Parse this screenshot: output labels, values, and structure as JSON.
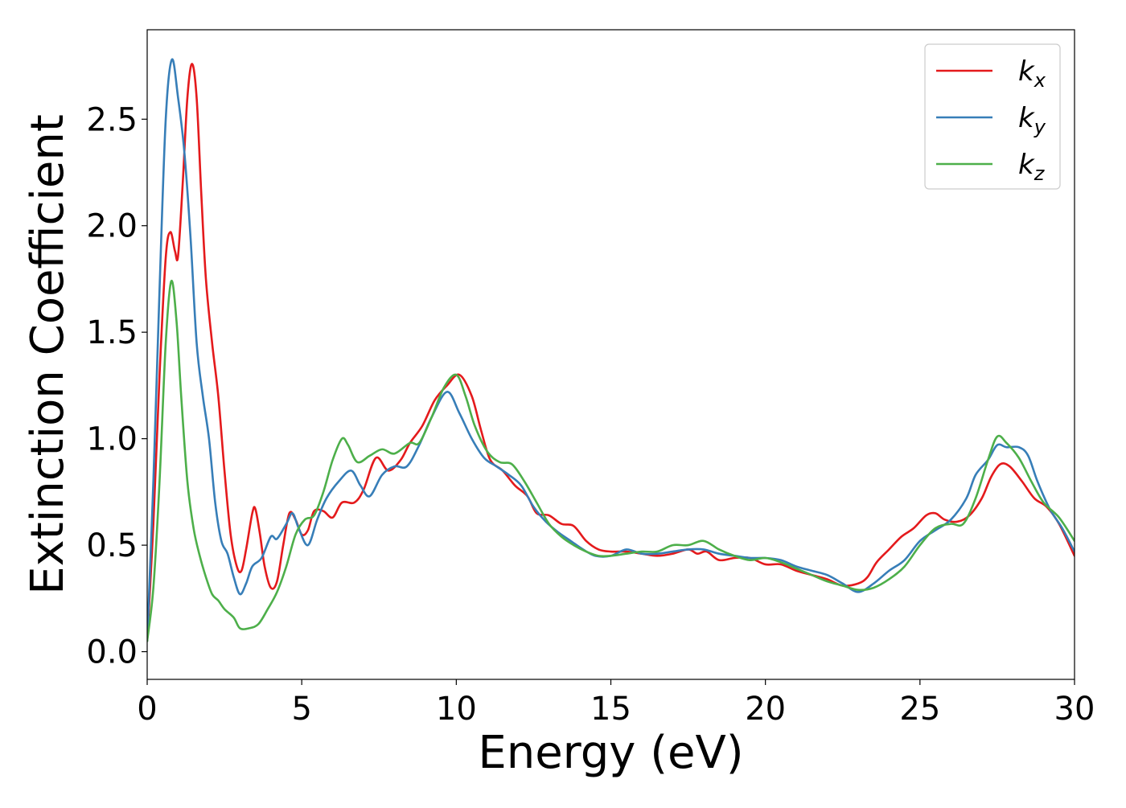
{
  "chart_data": {
    "type": "line",
    "xlabel": "Energy (eV)",
    "ylabel": "Extinction Coefficient",
    "xlim": [
      0,
      30
    ],
    "ylim": [
      -0.13,
      2.92
    ],
    "xticks": [
      0,
      5,
      10,
      15,
      20,
      25,
      30
    ],
    "yticks": [
      0.0,
      0.5,
      1.0,
      1.5,
      2.0,
      2.5
    ],
    "xtick_labels": [
      "0",
      "5",
      "10",
      "15",
      "20",
      "25",
      "30"
    ],
    "ytick_labels": [
      "0.0",
      "0.5",
      "1.0",
      "1.5",
      "2.0",
      "2.5"
    ],
    "grid": false,
    "legend_position": "top-right",
    "series": [
      {
        "name": "k_x",
        "label_base": "k",
        "label_sub": "x",
        "color": "#e41a1c",
        "points": [
          [
            0,
            0.05
          ],
          [
            0.2,
            0.6
          ],
          [
            0.4,
            1.3
          ],
          [
            0.6,
            1.85
          ],
          [
            0.75,
            1.97
          ],
          [
            0.9,
            1.88
          ],
          [
            1.0,
            1.86
          ],
          [
            1.15,
            2.2
          ],
          [
            1.3,
            2.6
          ],
          [
            1.45,
            2.76
          ],
          [
            1.6,
            2.6
          ],
          [
            1.75,
            2.15
          ],
          [
            1.9,
            1.75
          ],
          [
            2.1,
            1.45
          ],
          [
            2.3,
            1.2
          ],
          [
            2.5,
            0.85
          ],
          [
            2.7,
            0.55
          ],
          [
            2.9,
            0.4
          ],
          [
            3.05,
            0.38
          ],
          [
            3.2,
            0.48
          ],
          [
            3.4,
            0.65
          ],
          [
            3.5,
            0.67
          ],
          [
            3.65,
            0.55
          ],
          [
            3.8,
            0.4
          ],
          [
            4.0,
            0.3
          ],
          [
            4.2,
            0.33
          ],
          [
            4.4,
            0.5
          ],
          [
            4.6,
            0.65
          ],
          [
            4.8,
            0.62
          ],
          [
            5.0,
            0.55
          ],
          [
            5.2,
            0.57
          ],
          [
            5.4,
            0.66
          ],
          [
            5.7,
            0.66
          ],
          [
            6.0,
            0.63
          ],
          [
            6.3,
            0.7
          ],
          [
            6.7,
            0.7
          ],
          [
            7.0,
            0.76
          ],
          [
            7.4,
            0.91
          ],
          [
            7.8,
            0.85
          ],
          [
            8.2,
            0.9
          ],
          [
            8.5,
            0.98
          ],
          [
            8.9,
            1.06
          ],
          [
            9.3,
            1.18
          ],
          [
            9.7,
            1.25
          ],
          [
            10.1,
            1.3
          ],
          [
            10.5,
            1.2
          ],
          [
            10.8,
            1.04
          ],
          [
            11.1,
            0.9
          ],
          [
            11.5,
            0.85
          ],
          [
            11.9,
            0.78
          ],
          [
            12.3,
            0.73
          ],
          [
            12.6,
            0.65
          ],
          [
            13.0,
            0.64
          ],
          [
            13.4,
            0.6
          ],
          [
            13.8,
            0.59
          ],
          [
            14.2,
            0.52
          ],
          [
            14.6,
            0.48
          ],
          [
            15.0,
            0.47
          ],
          [
            15.5,
            0.47
          ],
          [
            16.0,
            0.46
          ],
          [
            16.5,
            0.45
          ],
          [
            17.0,
            0.46
          ],
          [
            17.5,
            0.48
          ],
          [
            17.8,
            0.46
          ],
          [
            18.1,
            0.47
          ],
          [
            18.5,
            0.43
          ],
          [
            19.0,
            0.44
          ],
          [
            19.5,
            0.44
          ],
          [
            20.0,
            0.41
          ],
          [
            20.5,
            0.41
          ],
          [
            21.0,
            0.38
          ],
          [
            21.5,
            0.36
          ],
          [
            22.0,
            0.34
          ],
          [
            22.5,
            0.31
          ],
          [
            23.0,
            0.32
          ],
          [
            23.3,
            0.35
          ],
          [
            23.6,
            0.42
          ],
          [
            24.0,
            0.48
          ],
          [
            24.4,
            0.54
          ],
          [
            24.8,
            0.58
          ],
          [
            25.2,
            0.64
          ],
          [
            25.5,
            0.65
          ],
          [
            25.8,
            0.62
          ],
          [
            26.2,
            0.61
          ],
          [
            26.6,
            0.64
          ],
          [
            27.0,
            0.72
          ],
          [
            27.3,
            0.82
          ],
          [
            27.6,
            0.88
          ],
          [
            27.9,
            0.87
          ],
          [
            28.3,
            0.8
          ],
          [
            28.7,
            0.72
          ],
          [
            29.1,
            0.68
          ],
          [
            29.5,
            0.6
          ],
          [
            30.0,
            0.45
          ]
        ]
      },
      {
        "name": "k_y",
        "label_base": "k",
        "label_sub": "y",
        "color": "#377eb8",
        "points": [
          [
            0,
            0.05
          ],
          [
            0.2,
            0.8
          ],
          [
            0.4,
            1.7
          ],
          [
            0.6,
            2.5
          ],
          [
            0.8,
            2.78
          ],
          [
            1.0,
            2.6
          ],
          [
            1.2,
            2.35
          ],
          [
            1.4,
            1.95
          ],
          [
            1.6,
            1.45
          ],
          [
            1.8,
            1.2
          ],
          [
            2.0,
            1.0
          ],
          [
            2.2,
            0.7
          ],
          [
            2.4,
            0.52
          ],
          [
            2.6,
            0.46
          ],
          [
            2.8,
            0.35
          ],
          [
            3.0,
            0.27
          ],
          [
            3.2,
            0.32
          ],
          [
            3.4,
            0.4
          ],
          [
            3.7,
            0.44
          ],
          [
            4.0,
            0.54
          ],
          [
            4.2,
            0.53
          ],
          [
            4.5,
            0.6
          ],
          [
            4.7,
            0.65
          ],
          [
            4.9,
            0.58
          ],
          [
            5.2,
            0.5
          ],
          [
            5.5,
            0.62
          ],
          [
            5.8,
            0.72
          ],
          [
            6.2,
            0.8
          ],
          [
            6.6,
            0.85
          ],
          [
            6.9,
            0.78
          ],
          [
            7.2,
            0.73
          ],
          [
            7.6,
            0.83
          ],
          [
            8.0,
            0.87
          ],
          [
            8.4,
            0.87
          ],
          [
            8.8,
            0.97
          ],
          [
            9.2,
            1.1
          ],
          [
            9.7,
            1.22
          ],
          [
            10.1,
            1.12
          ],
          [
            10.5,
            1.0
          ],
          [
            10.9,
            0.91
          ],
          [
            11.3,
            0.87
          ],
          [
            11.7,
            0.83
          ],
          [
            12.1,
            0.78
          ],
          [
            12.5,
            0.68
          ],
          [
            12.9,
            0.61
          ],
          [
            13.3,
            0.56
          ],
          [
            13.7,
            0.52
          ],
          [
            14.1,
            0.48
          ],
          [
            14.5,
            0.45
          ],
          [
            15.0,
            0.45
          ],
          [
            15.5,
            0.48
          ],
          [
            16.0,
            0.46
          ],
          [
            16.5,
            0.46
          ],
          [
            17.0,
            0.47
          ],
          [
            17.5,
            0.48
          ],
          [
            18.0,
            0.48
          ],
          [
            18.5,
            0.46
          ],
          [
            19.0,
            0.45
          ],
          [
            19.5,
            0.44
          ],
          [
            20.0,
            0.44
          ],
          [
            20.5,
            0.43
          ],
          [
            21.0,
            0.4
          ],
          [
            21.5,
            0.38
          ],
          [
            22.0,
            0.36
          ],
          [
            22.5,
            0.32
          ],
          [
            23.0,
            0.28
          ],
          [
            23.5,
            0.32
          ],
          [
            24.0,
            0.38
          ],
          [
            24.5,
            0.43
          ],
          [
            25.0,
            0.52
          ],
          [
            25.5,
            0.57
          ],
          [
            26.0,
            0.62
          ],
          [
            26.5,
            0.72
          ],
          [
            26.8,
            0.83
          ],
          [
            27.2,
            0.9
          ],
          [
            27.5,
            0.97
          ],
          [
            27.8,
            0.96
          ],
          [
            28.2,
            0.96
          ],
          [
            28.5,
            0.92
          ],
          [
            28.8,
            0.8
          ],
          [
            29.2,
            0.67
          ],
          [
            29.6,
            0.58
          ],
          [
            30.0,
            0.47
          ]
        ]
      },
      {
        "name": "k_z",
        "label_base": "k",
        "label_sub": "z",
        "color": "#4daf4a",
        "points": [
          [
            0,
            0.05
          ],
          [
            0.2,
            0.3
          ],
          [
            0.4,
            0.8
          ],
          [
            0.6,
            1.45
          ],
          [
            0.78,
            1.74
          ],
          [
            0.95,
            1.55
          ],
          [
            1.1,
            1.2
          ],
          [
            1.3,
            0.8
          ],
          [
            1.5,
            0.58
          ],
          [
            1.7,
            0.45
          ],
          [
            1.9,
            0.35
          ],
          [
            2.1,
            0.27
          ],
          [
            2.3,
            0.24
          ],
          [
            2.5,
            0.2
          ],
          [
            2.8,
            0.16
          ],
          [
            3.0,
            0.11
          ],
          [
            3.3,
            0.11
          ],
          [
            3.6,
            0.13
          ],
          [
            3.9,
            0.2
          ],
          [
            4.2,
            0.28
          ],
          [
            4.5,
            0.4
          ],
          [
            4.8,
            0.55
          ],
          [
            5.1,
            0.62
          ],
          [
            5.4,
            0.64
          ],
          [
            5.7,
            0.75
          ],
          [
            6.0,
            0.9
          ],
          [
            6.3,
            1.0
          ],
          [
            6.5,
            0.97
          ],
          [
            6.8,
            0.89
          ],
          [
            7.2,
            0.92
          ],
          [
            7.6,
            0.95
          ],
          [
            8.0,
            0.93
          ],
          [
            8.5,
            0.98
          ],
          [
            8.8,
            0.98
          ],
          [
            9.2,
            1.1
          ],
          [
            9.6,
            1.24
          ],
          [
            10.0,
            1.3
          ],
          [
            10.3,
            1.2
          ],
          [
            10.6,
            1.06
          ],
          [
            11.0,
            0.94
          ],
          [
            11.4,
            0.89
          ],
          [
            11.8,
            0.88
          ],
          [
            12.2,
            0.8
          ],
          [
            12.6,
            0.7
          ],
          [
            13.0,
            0.6
          ],
          [
            13.4,
            0.54
          ],
          [
            13.8,
            0.5
          ],
          [
            14.2,
            0.47
          ],
          [
            14.6,
            0.45
          ],
          [
            15.0,
            0.45
          ],
          [
            15.5,
            0.46
          ],
          [
            16.0,
            0.47
          ],
          [
            16.5,
            0.47
          ],
          [
            17.0,
            0.5
          ],
          [
            17.5,
            0.5
          ],
          [
            18.0,
            0.52
          ],
          [
            18.5,
            0.48
          ],
          [
            19.0,
            0.45
          ],
          [
            19.5,
            0.43
          ],
          [
            20.0,
            0.44
          ],
          [
            20.5,
            0.42
          ],
          [
            21.0,
            0.39
          ],
          [
            21.5,
            0.36
          ],
          [
            22.0,
            0.33
          ],
          [
            22.5,
            0.31
          ],
          [
            23.0,
            0.29
          ],
          [
            23.5,
            0.3
          ],
          [
            24.0,
            0.34
          ],
          [
            24.5,
            0.4
          ],
          [
            25.0,
            0.5
          ],
          [
            25.5,
            0.58
          ],
          [
            26.0,
            0.6
          ],
          [
            26.4,
            0.6
          ],
          [
            26.8,
            0.72
          ],
          [
            27.2,
            0.9
          ],
          [
            27.5,
            1.01
          ],
          [
            27.8,
            0.98
          ],
          [
            28.2,
            0.91
          ],
          [
            28.6,
            0.8
          ],
          [
            29.0,
            0.7
          ],
          [
            29.5,
            0.63
          ],
          [
            30.0,
            0.52
          ]
        ]
      }
    ]
  }
}
